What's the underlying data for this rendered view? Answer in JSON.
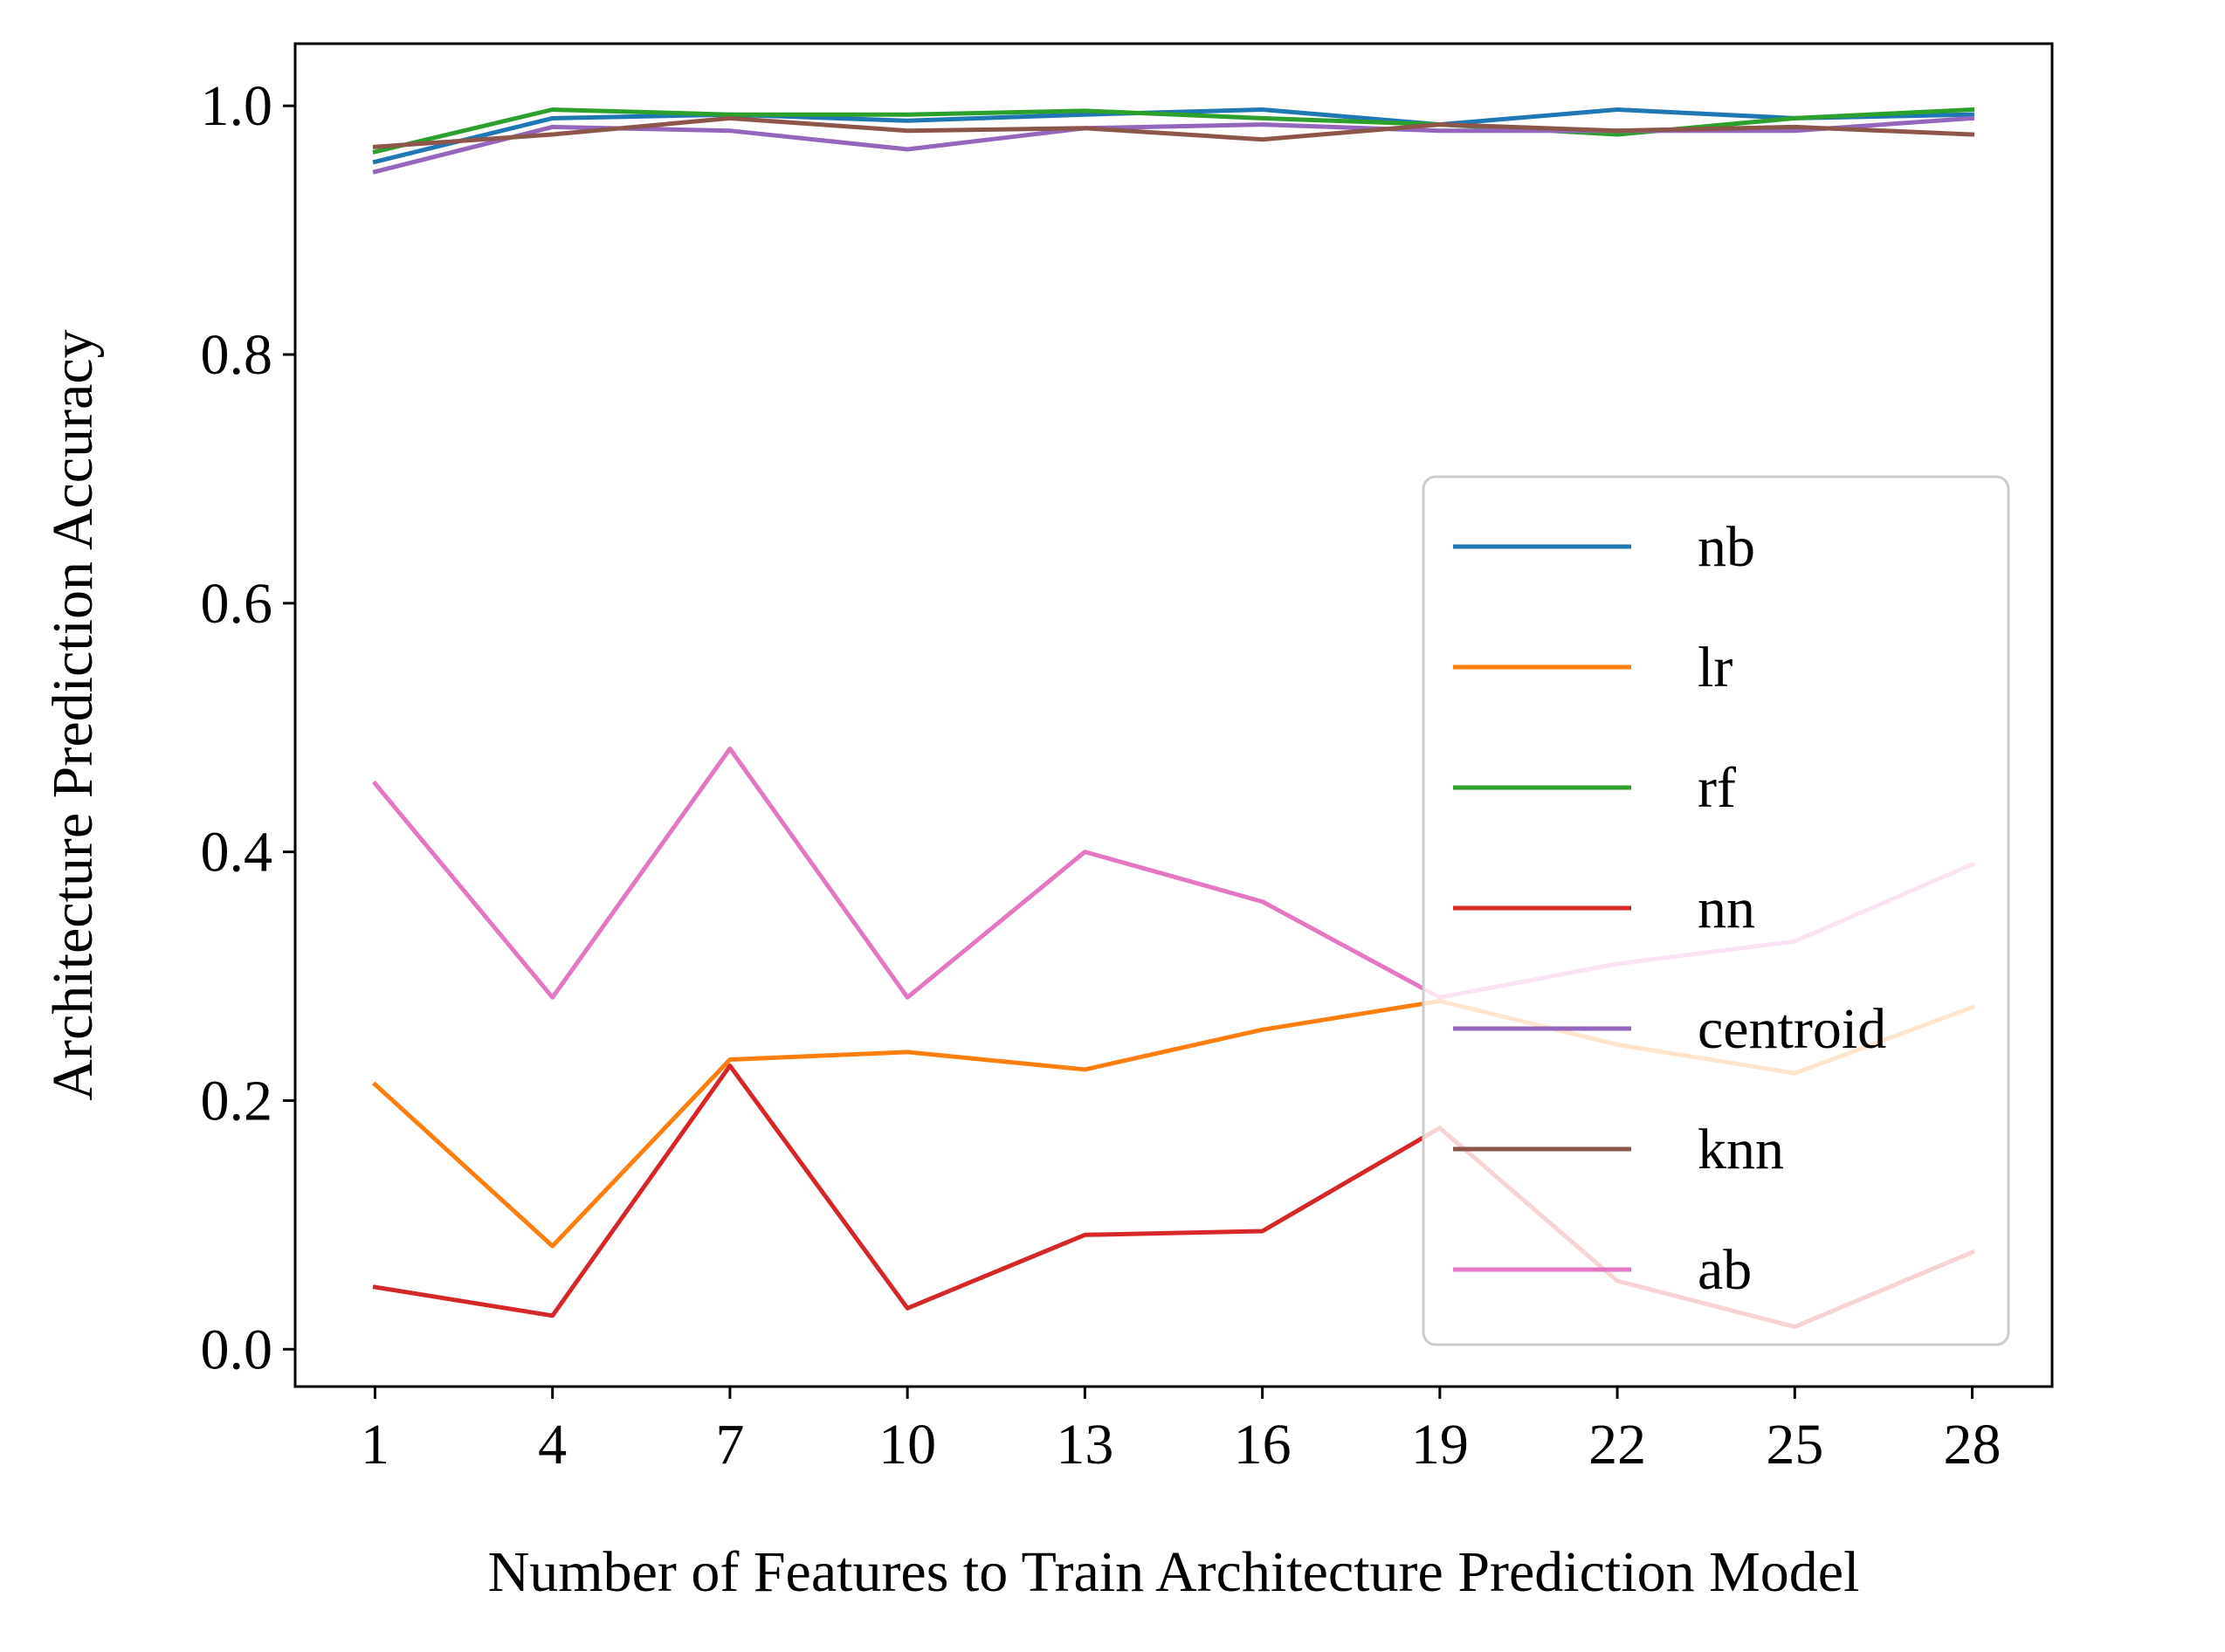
{
  "chart_data": {
    "type": "line",
    "title": "",
    "xlabel": "Number of Features to Train Architecture Prediction Model",
    "ylabel": "Architecture Prediction Accuracy",
    "x": [
      1,
      4,
      7,
      10,
      13,
      16,
      19,
      22,
      25,
      28
    ],
    "xticks": [
      "1",
      "4",
      "7",
      "10",
      "13",
      "16",
      "19",
      "22",
      "25",
      "28"
    ],
    "yticks": [
      "0.0",
      "0.2",
      "0.4",
      "0.6",
      "0.8",
      "1.0"
    ],
    "xlim": [
      -0.35,
      29.35
    ],
    "ylim": [
      -0.03,
      1.05
    ],
    "grid": false,
    "legend_position": "lower-right",
    "series": [
      {
        "name": "nb",
        "color": "#1f77b4",
        "values": [
          0.955,
          0.99,
          0.993,
          0.988,
          0.993,
          0.997,
          0.985,
          0.997,
          0.99,
          0.993
        ]
      },
      {
        "name": "lr",
        "color": "#ff7f0e",
        "values": [
          0.213,
          0.083,
          0.233,
          0.239,
          0.225,
          0.257,
          0.28,
          0.245,
          0.222,
          0.275
        ]
      },
      {
        "name": "rf",
        "color": "#2ca02c",
        "values": [
          0.963,
          0.997,
          0.993,
          0.993,
          0.996,
          0.99,
          0.985,
          0.977,
          0.99,
          0.997
        ]
      },
      {
        "name": "nn",
        "color": "#d62728",
        "values": [
          0.05,
          0.027,
          0.228,
          0.033,
          0.092,
          0.095,
          0.178,
          0.055,
          0.018,
          0.078
        ]
      },
      {
        "name": "centroid",
        "color": "#9467bd",
        "values": [
          0.947,
          0.983,
          0.98,
          0.965,
          0.982,
          0.985,
          0.98,
          0.98,
          0.98,
          0.99
        ]
      },
      {
        "name": "knn",
        "color": "#8c564b",
        "values": [
          0.967,
          0.977,
          0.99,
          0.98,
          0.982,
          0.973,
          0.985,
          0.98,
          0.983,
          0.977
        ]
      },
      {
        "name": "ab",
        "color": "#e377c2",
        "values": [
          0.455,
          0.283,
          0.483,
          0.283,
          0.4,
          0.36,
          0.283,
          0.31,
          0.328,
          0.39
        ]
      }
    ]
  }
}
